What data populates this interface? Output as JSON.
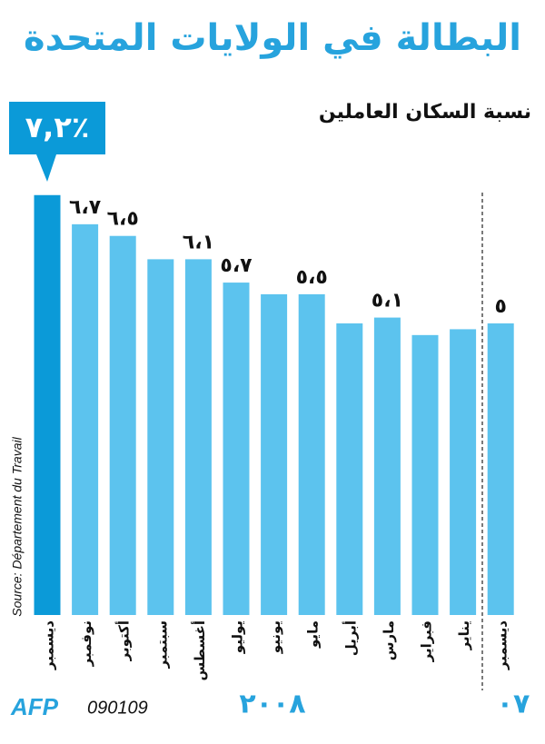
{
  "chart_data": {
    "type": "bar",
    "title": "البطالة في الولايات المتحدة",
    "subtitle": "نسبة السكان العاملين",
    "categories": [
      "ديسمبر",
      "نوفمبر",
      "أكتوبر",
      "سبتمبر",
      "أغسطس",
      "يوليو",
      "يونيو",
      "مايو",
      "أبريل",
      "مارس",
      "فبراير",
      "يناير",
      "ديسمبر"
    ],
    "values": [
      7.2,
      6.7,
      6.5,
      6.1,
      6.1,
      5.7,
      5.5,
      5.5,
      5.0,
      5.1,
      4.8,
      4.9,
      5.0
    ],
    "value_labels": [
      "٧,٢٪",
      "٦،٧",
      "٦،٥",
      null,
      "٦،١",
      "٥،٧",
      null,
      "٥،٥",
      null,
      "٥،١",
      null,
      null,
      "٥"
    ],
    "color": "#5cc3ee",
    "highlight_color": "#0b9ad8",
    "year_labels": [
      "٢٠٠٨",
      "٠٧"
    ],
    "source": "Source: Département du Travail",
    "credit": "AFP",
    "code": "090109"
  }
}
